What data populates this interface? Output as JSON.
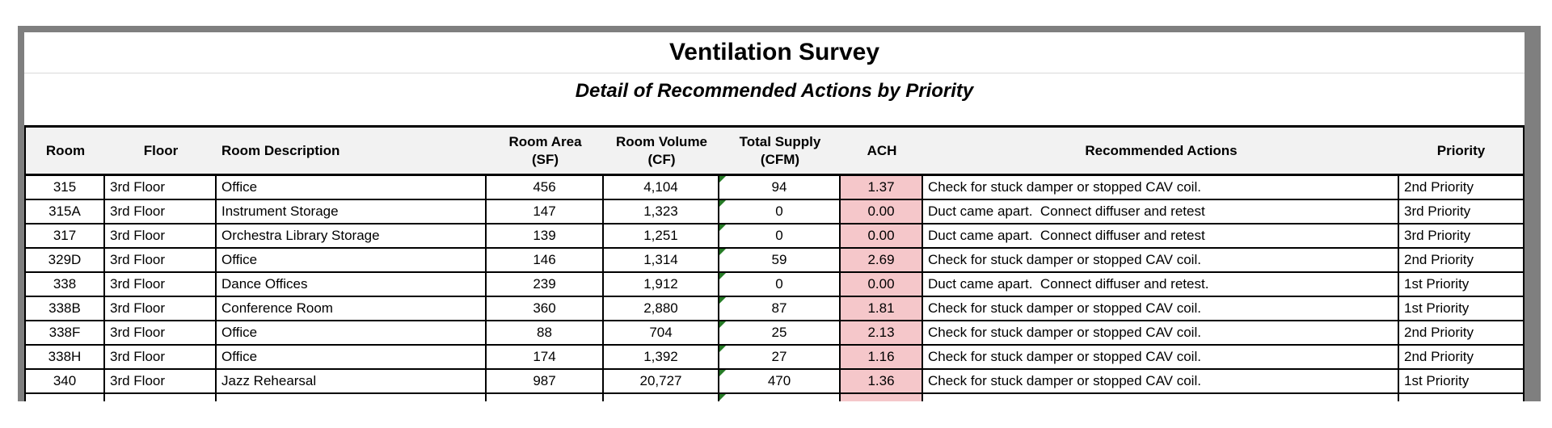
{
  "title": "Ventilation Survey",
  "subtitle": "Detail of Recommended Actions by Priority",
  "colors": {
    "frame_gray": "#7f7f7f",
    "header_bg": "#f2f2f2",
    "ach_highlight_pink": "#f5c7ca",
    "error_indicator_green": "#267b26",
    "grid_black": "#000000"
  },
  "table": {
    "columns": [
      {
        "key": "room",
        "label": "Room",
        "sub": ""
      },
      {
        "key": "floor",
        "label": "Floor",
        "sub": ""
      },
      {
        "key": "description",
        "label": "Room Description",
        "sub": ""
      },
      {
        "key": "area",
        "label": "Room Area",
        "sub": "(SF)"
      },
      {
        "key": "volume",
        "label": "Room Volume",
        "sub": "(CF)"
      },
      {
        "key": "supply",
        "label": "Total Supply",
        "sub": "(CFM)"
      },
      {
        "key": "ach",
        "label": "ACH",
        "sub": ""
      },
      {
        "key": "actions",
        "label": "Recommended Actions",
        "sub": ""
      },
      {
        "key": "priority",
        "label": "Priority",
        "sub": ""
      }
    ],
    "rows": [
      {
        "room": "315",
        "floor": "3rd Floor",
        "description": "Office",
        "area": "456",
        "volume": "4,104",
        "supply": "94",
        "ach": "1.37",
        "actions": "Check for stuck damper or stopped CAV coil.",
        "priority": "2nd Priority"
      },
      {
        "room": "315A",
        "floor": "3rd Floor",
        "description": "Instrument Storage",
        "area": "147",
        "volume": "1,323",
        "supply": "0",
        "ach": "0.00",
        "actions": "Duct came apart.  Connect diffuser and retest",
        "priority": "3rd Priority"
      },
      {
        "room": "317",
        "floor": "3rd Floor",
        "description": "Orchestra Library Storage",
        "area": "139",
        "volume": "1,251",
        "supply": "0",
        "ach": "0.00",
        "actions": "Duct came apart.  Connect diffuser and retest",
        "priority": "3rd Priority"
      },
      {
        "room": "329D",
        "floor": "3rd Floor",
        "description": "Office",
        "area": "146",
        "volume": "1,314",
        "supply": "59",
        "ach": "2.69",
        "actions": "Check for stuck damper or stopped CAV coil.",
        "priority": "2nd Priority"
      },
      {
        "room": "338",
        "floor": "3rd Floor",
        "description": "Dance Offices",
        "area": "239",
        "volume": "1,912",
        "supply": "0",
        "ach": "0.00",
        "actions": "Duct came apart.  Connect diffuser and retest.",
        "priority": "1st Priority"
      },
      {
        "room": "338B",
        "floor": "3rd Floor",
        "description": "Conference Room",
        "area": "360",
        "volume": "2,880",
        "supply": "87",
        "ach": "1.81",
        "actions": "Check for stuck damper or stopped CAV coil.",
        "priority": "1st Priority"
      },
      {
        "room": "338F",
        "floor": "3rd Floor",
        "description": "Office",
        "area": "88",
        "volume": "704",
        "supply": "25",
        "ach": "2.13",
        "actions": "Check for stuck damper or stopped CAV coil.",
        "priority": "2nd Priority"
      },
      {
        "room": "338H",
        "floor": "3rd Floor",
        "description": "Office",
        "area": "174",
        "volume": "1,392",
        "supply": "27",
        "ach": "1.16",
        "actions": "Check for stuck damper or stopped CAV coil.",
        "priority": "2nd Priority"
      },
      {
        "room": "340",
        "floor": "3rd Floor",
        "description": "Jazz Rehearsal",
        "area": "987",
        "volume": "20,727",
        "supply": "470",
        "ach": "1.36",
        "actions": "Check for stuck damper or stopped CAV coil.",
        "priority": "1st Priority"
      },
      {
        "room": "",
        "floor": "",
        "description": "",
        "area": "",
        "volume": "",
        "supply": "",
        "ach": "",
        "actions": "",
        "priority": ""
      }
    ]
  }
}
